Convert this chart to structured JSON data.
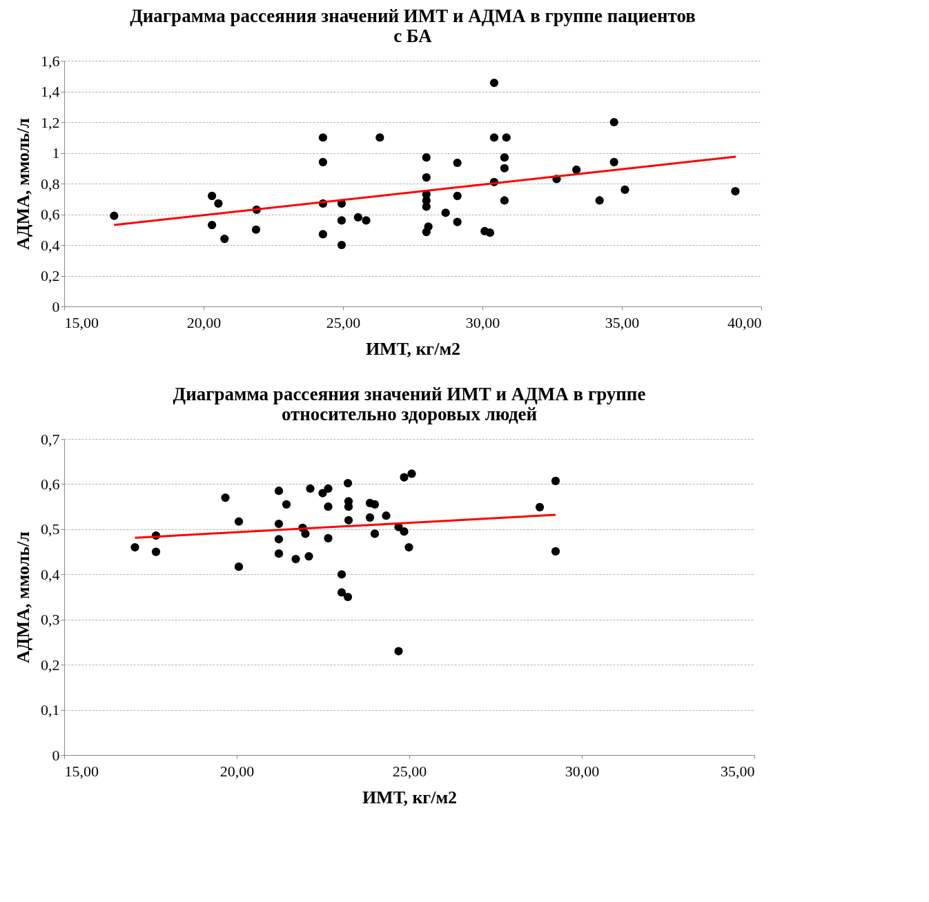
{
  "chart_data": [
    {
      "type": "scatter",
      "title": "Диаграмма рассеяния значений ИМТ и АДМА в группе пациентов\nс БА",
      "xlabel": "ИМТ, кг/м2",
      "ylabel": "АДМА, ммоль/л",
      "grid": "y",
      "xlim": [
        15,
        40
      ],
      "xticks": [
        {
          "value": 15,
          "label": "15,00"
        },
        {
          "value": 20,
          "label": "20,00"
        },
        {
          "value": 25,
          "label": "25,00"
        },
        {
          "value": 30,
          "label": "30,00"
        },
        {
          "value": 35,
          "label": "35,00"
        },
        {
          "value": 40,
          "label": "40,00"
        }
      ],
      "ylim": [
        0,
        1.6
      ],
      "yticks": [
        0,
        {
          "value": 0.2,
          "label": "0,2"
        },
        {
          "value": 0.4,
          "label": "0,4"
        },
        {
          "value": 0.6,
          "label": "0,6"
        },
        {
          "value": 0.8,
          "label": "0,8"
        },
        1,
        {
          "value": 1.2,
          "label": "1,2"
        },
        {
          "value": 1.4,
          "label": "1,4"
        },
        {
          "value": 1.6,
          "label": "1,6"
        }
      ],
      "series": [
        {
          "color": "#000000",
          "marker": "circle",
          "x": [
            16.79,
            20.3,
            20.53,
            20.3,
            20.75,
            21.88,
            21.9,
            24.28,
            24.28,
            24.28,
            24.28,
            24.95,
            24.95,
            24.95,
            25.54,
            25.83,
            26.32,
            27.99,
            27.99,
            27.99,
            27.99,
            27.99,
            28.06,
            27.99,
            28.68,
            29.1,
            29.1,
            29.1,
            30.08,
            30.27,
            30.42,
            30.42,
            30.42,
            30.86,
            30.79,
            30.79,
            30.79,
            32.66,
            33.37,
            34.2,
            34.72,
            34.72,
            35.11,
            39.07
          ],
          "values": [
            0.59,
            0.72,
            0.67,
            0.53,
            0.44,
            0.5,
            0.63,
            1.1,
            0.94,
            0.67,
            0.47,
            0.67,
            0.56,
            0.4,
            0.58,
            0.56,
            1.1,
            0.97,
            0.84,
            0.73,
            0.69,
            0.65,
            0.52,
            0.485,
            0.61,
            0.935,
            0.72,
            0.55,
            0.49,
            0.48,
            1.456,
            1.1,
            0.81,
            1.1,
            0.97,
            0.9,
            0.69,
            0.83,
            0.89,
            0.69,
            0.94,
            1.2,
            0.76,
            0.75
          ]
        },
        {
          "type": "line",
          "color": "#ff0000",
          "marker": "none",
          "x": [
            16.79,
            39.09
          ],
          "values": [
            0.53,
            0.975
          ]
        }
      ]
    },
    {
      "type": "scatter",
      "title": "Диаграмма рассеяния значений ИМТ и АДМА в группе\nотносительно здоровых людей",
      "xlabel": "ИМТ, кг/м2",
      "ylabel": "АДМА, ммоль/л",
      "grid": "y",
      "xlim": [
        15,
        35
      ],
      "xticks": [
        {
          "value": 15,
          "label": "15,00"
        },
        {
          "value": 20,
          "label": "20,00"
        },
        {
          "value": 25,
          "label": "25,00"
        },
        {
          "value": 30,
          "label": "30,00"
        },
        {
          "value": 35,
          "label": "35,00"
        }
      ],
      "ylim": [
        0,
        0.7
      ],
      "yticks": [
        0,
        {
          "value": 0.1,
          "label": "0,1"
        },
        {
          "value": 0.2,
          "label": "0,2"
        },
        {
          "value": 0.3,
          "label": "0,3"
        },
        {
          "value": 0.4,
          "label": "0,4"
        },
        {
          "value": 0.5,
          "label": "0,5"
        },
        {
          "value": 0.6,
          "label": "0,6"
        },
        {
          "value": 0.7,
          "label": "0,7"
        }
      ],
      "series": [
        {
          "color": "#000000",
          "marker": "circle",
          "x": [
            17.05,
            17.66,
            17.66,
            19.67,
            20.06,
            20.06,
            21.22,
            21.44,
            21.22,
            21.22,
            21.22,
            21.71,
            22.13,
            22.49,
            22.65,
            22.65,
            21.91,
            21.99,
            22.09,
            22.65,
            23.22,
            23.24,
            23.24,
            23.24,
            23.04,
            23.04,
            23.22,
            23.86,
            24.0,
            23.86,
            24.0,
            24.33,
            24.69,
            24.85,
            24.99,
            24.85,
            25.07,
            24.69,
            28.78,
            29.24,
            29.24
          ],
          "values": [
            0.46,
            0.486,
            0.45,
            0.57,
            0.517,
            0.417,
            0.585,
            0.555,
            0.512,
            0.478,
            0.446,
            0.434,
            0.59,
            0.58,
            0.59,
            0.55,
            0.503,
            0.49,
            0.44,
            0.48,
            0.602,
            0.562,
            0.55,
            0.52,
            0.4,
            0.36,
            0.35,
            0.558,
            0.555,
            0.526,
            0.49,
            0.53,
            0.505,
            0.495,
            0.46,
            0.615,
            0.623,
            0.23,
            0.549,
            0.607,
            0.451
          ]
        },
        {
          "type": "line",
          "color": "#ff0000",
          "marker": "none",
          "x": [
            17.05,
            29.24
          ],
          "values": [
            0.481,
            0.532
          ]
        }
      ]
    }
  ]
}
